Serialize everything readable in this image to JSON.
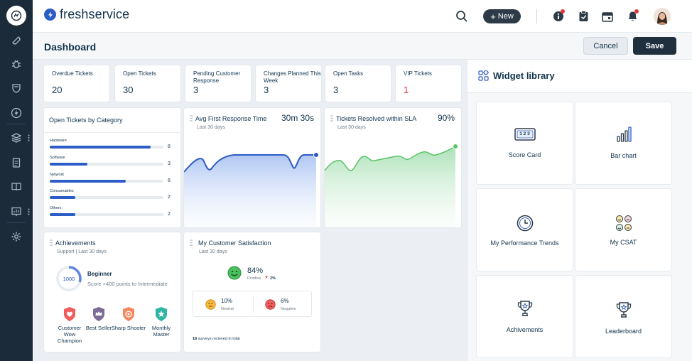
{
  "app": {
    "brand": "freshservice"
  },
  "topbar": {
    "new_label": "New"
  },
  "header": {
    "title": "Dashboard",
    "cancel_label": "Cancel",
    "save_label": "Save"
  },
  "score_cards": [
    {
      "label": "Overdue Tickets",
      "value": "20",
      "color": "#12344d"
    },
    {
      "label": "Open Tickets",
      "value": "30",
      "color": "#12344d"
    },
    {
      "label": "Pending Customer Response",
      "value": "3",
      "color": "#12344d"
    },
    {
      "label": "Changes Planned This Week",
      "value": "3",
      "color": "#12344d"
    },
    {
      "label": "Open Tasks",
      "value": "3",
      "color": "#12344d"
    },
    {
      "label": "VIP Tickets",
      "value": "1",
      "color": "#e43538"
    }
  ],
  "category_widget": {
    "title": "Open Tickets by Category",
    "max": 9,
    "items": [
      {
        "name": "Hardware",
        "count": 8
      },
      {
        "name": "Software",
        "count": 3
      },
      {
        "name": "Network",
        "count": 6
      },
      {
        "name": "Consumables",
        "count": 2
      },
      {
        "name": "Others",
        "count": 2
      }
    ]
  },
  "response_widget": {
    "title": "Avg First Response Time",
    "subtitle": "Last 30 days",
    "metric": "30m 30s",
    "color": "#2c5cc5"
  },
  "sla_widget": {
    "title": "Tickets Resolved within SLA",
    "subtitle": "Last 30 days",
    "metric": "90%",
    "color": "#5ac467"
  },
  "achievements": {
    "title": "Achievements",
    "subtitle": "Support | Last 30 days",
    "points": "1000",
    "progress": 0.3,
    "level": "Beginner",
    "description": "Score +400 points to Intermediate",
    "badges": [
      {
        "name": "Customer Wow Champion",
        "color": "#ef5d5d",
        "icon": "heart-shield-icon"
      },
      {
        "name": "Best Seller",
        "color": "#7c6b97",
        "icon": "crown-shield-icon"
      },
      {
        "name": "Sharp Shooter",
        "color": "#f5875e",
        "icon": "target-shield-icon"
      },
      {
        "name": "Monthly Master",
        "color": "#2eb5a4",
        "icon": "star-shield-icon"
      }
    ]
  },
  "csat": {
    "title": "My Customer Satisfaction",
    "subtitle": "Last 30 days",
    "positive_pct": "84%",
    "positive_label": "Positive",
    "positive_change": "2%",
    "neutral_pct": "10%",
    "neutral_label": "Neutral",
    "negative_pct": "6%",
    "negative_label": "Negative",
    "surveys_count": "18",
    "surveys_text": "surveys recieved in total"
  },
  "library": {
    "title": "Widget library",
    "tiles": [
      {
        "label": "Score Card",
        "icon": "score-card-icon"
      },
      {
        "label": "Bar chart",
        "icon": "bar-chart-icon"
      },
      {
        "label": "My Performance Trends",
        "icon": "clock-icon"
      },
      {
        "label": "My CSAT",
        "icon": "smileys-icon"
      },
      {
        "label": "Achivements",
        "icon": "trophy-icon"
      },
      {
        "label": "Leaderboard",
        "icon": "trophy-icon"
      }
    ]
  },
  "score_card_icon_text": "1 2 3"
}
